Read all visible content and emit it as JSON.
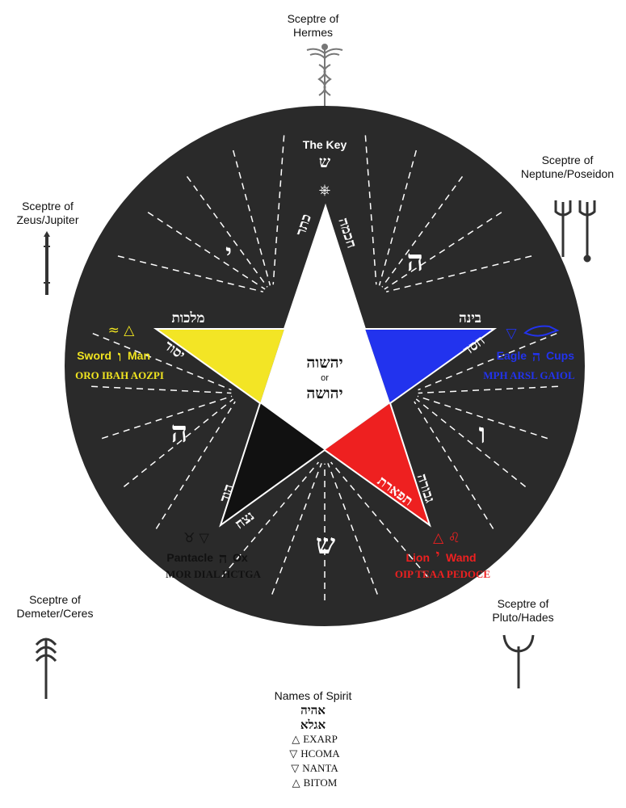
{
  "sceptres": {
    "hermes": {
      "line1": "Sceptre of",
      "line2": "Hermes",
      "icon": "caduceus-icon"
    },
    "zeus": {
      "line1": "Sceptre of",
      "line2": "Zeus/Jupiter",
      "icon": "jupiter-sceptre-icon"
    },
    "neptune": {
      "line1": "Sceptre of",
      "line2": "Neptune/Poseidon",
      "icon": "trident-icon"
    },
    "demeter": {
      "line1": "Sceptre of",
      "line2": "Demeter/Ceres",
      "icon": "ceres-sceptre-icon"
    },
    "pluto": {
      "line1": "Sceptre of",
      "line2": "Pluto/Hades",
      "icon": "bident-icon"
    }
  },
  "top": {
    "key_label": "The Key",
    "shin": "ש",
    "wheel_symbol": "⎈"
  },
  "center": {
    "line1": "יהשוה",
    "or": "or",
    "line2": "יהושה"
  },
  "sephiroth": {
    "keter": "כתר",
    "chokmah": "חכמה",
    "binah": "בינה",
    "chesed": "חסד",
    "geburah": "גבורה",
    "tiphareth": "תפארת",
    "netzach": "נצח",
    "hod": "הוד",
    "yesod": "יסוד",
    "malkuth": "מלכות"
  },
  "sector_letters": {
    "yod": "י",
    "he_upper": "ה",
    "vav": "ו",
    "shin": "ש",
    "he_lower": "ה"
  },
  "air": {
    "symbols": "≈ △",
    "weapon": "Sword",
    "letter": "ו",
    "creature": "Man",
    "names": "ORO IBAH AOZPI",
    "color": "#f0e420"
  },
  "water": {
    "symbols": "▽",
    "weapon": "Eagle",
    "letter": "ה",
    "creature": "Cups",
    "names": "MPH ARSL GAIOL",
    "color": "#2233ee"
  },
  "earth": {
    "symbols": "♉ ▽",
    "weapon": "Pantacle",
    "letter": "ה",
    "creature": "Ox",
    "names": "MOR DIAL HCTGA",
    "color": "#111111"
  },
  "fire": {
    "symbols": "△ ♌",
    "weapon": "Lion",
    "letter": "י",
    "creature": "Wand",
    "names": "OIP TEAA PEDOCE",
    "color": "#ee2020"
  },
  "spirit": {
    "title": "Names of Spirit",
    "hebrew1": "אהיה",
    "hebrew2": "אגלא",
    "rows": [
      {
        "symbol": "△",
        "name": "EXARP"
      },
      {
        "symbol": "▽",
        "name": "HCOMA"
      },
      {
        "symbol": "▽",
        "name": "NANTA"
      },
      {
        "symbol": "△",
        "name": "BITOM"
      }
    ]
  }
}
